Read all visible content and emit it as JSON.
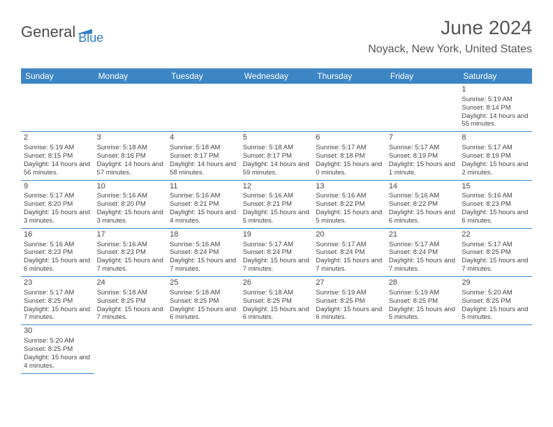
{
  "logo": {
    "text1": "General",
    "text2": "Blue"
  },
  "title": "June 2024",
  "location": "Noyack, New York, United States",
  "colors": {
    "header_bg": "#3d86c6",
    "header_text": "#ffffff",
    "border": "#3d86c6",
    "body_text": "#444444",
    "title_text": "#555555",
    "logo_gray": "#4a4a4a",
    "logo_blue": "#2f7cc4"
  },
  "weekdays": [
    "Sunday",
    "Monday",
    "Tuesday",
    "Wednesday",
    "Thursday",
    "Friday",
    "Saturday"
  ],
  "grid": [
    [
      null,
      null,
      null,
      null,
      null,
      null,
      {
        "n": "1",
        "sr": "Sunrise: 5:19 AM",
        "ss": "Sunset: 8:14 PM",
        "dl": "Daylight: 14 hours and 55 minutes."
      }
    ],
    [
      {
        "n": "2",
        "sr": "Sunrise: 5:19 AM",
        "ss": "Sunset: 8:15 PM",
        "dl": "Daylight: 14 hours and 56 minutes."
      },
      {
        "n": "3",
        "sr": "Sunrise: 5:18 AM",
        "ss": "Sunset: 8:16 PM",
        "dl": "Daylight: 14 hours and 57 minutes."
      },
      {
        "n": "4",
        "sr": "Sunrise: 5:18 AM",
        "ss": "Sunset: 8:17 PM",
        "dl": "Daylight: 14 hours and 58 minutes."
      },
      {
        "n": "5",
        "sr": "Sunrise: 5:18 AM",
        "ss": "Sunset: 8:17 PM",
        "dl": "Daylight: 14 hours and 59 minutes."
      },
      {
        "n": "6",
        "sr": "Sunrise: 5:17 AM",
        "ss": "Sunset: 8:18 PM",
        "dl": "Daylight: 15 hours and 0 minutes."
      },
      {
        "n": "7",
        "sr": "Sunrise: 5:17 AM",
        "ss": "Sunset: 8:19 PM",
        "dl": "Daylight: 15 hours and 1 minute."
      },
      {
        "n": "8",
        "sr": "Sunrise: 5:17 AM",
        "ss": "Sunset: 8:19 PM",
        "dl": "Daylight: 15 hours and 2 minutes."
      }
    ],
    [
      {
        "n": "9",
        "sr": "Sunrise: 5:17 AM",
        "ss": "Sunset: 8:20 PM",
        "dl": "Daylight: 15 hours and 3 minutes."
      },
      {
        "n": "10",
        "sr": "Sunrise: 5:16 AM",
        "ss": "Sunset: 8:20 PM",
        "dl": "Daylight: 15 hours and 3 minutes."
      },
      {
        "n": "11",
        "sr": "Sunrise: 5:16 AM",
        "ss": "Sunset: 8:21 PM",
        "dl": "Daylight: 15 hours and 4 minutes."
      },
      {
        "n": "12",
        "sr": "Sunrise: 5:16 AM",
        "ss": "Sunset: 8:21 PM",
        "dl": "Daylight: 15 hours and 5 minutes."
      },
      {
        "n": "13",
        "sr": "Sunrise: 5:16 AM",
        "ss": "Sunset: 8:22 PM",
        "dl": "Daylight: 15 hours and 5 minutes."
      },
      {
        "n": "14",
        "sr": "Sunrise: 5:16 AM",
        "ss": "Sunset: 8:22 PM",
        "dl": "Daylight: 15 hours and 6 minutes."
      },
      {
        "n": "15",
        "sr": "Sunrise: 5:16 AM",
        "ss": "Sunset: 8:23 PM",
        "dl": "Daylight: 15 hours and 6 minutes."
      }
    ],
    [
      {
        "n": "16",
        "sr": "Sunrise: 5:16 AM",
        "ss": "Sunset: 8:23 PM",
        "dl": "Daylight: 15 hours and 6 minutes."
      },
      {
        "n": "17",
        "sr": "Sunrise: 5:16 AM",
        "ss": "Sunset: 8:23 PM",
        "dl": "Daylight: 15 hours and 7 minutes."
      },
      {
        "n": "18",
        "sr": "Sunrise: 5:16 AM",
        "ss": "Sunset: 8:24 PM",
        "dl": "Daylight: 15 hours and 7 minutes."
      },
      {
        "n": "19",
        "sr": "Sunrise: 5:17 AM",
        "ss": "Sunset: 8:24 PM",
        "dl": "Daylight: 15 hours and 7 minutes."
      },
      {
        "n": "20",
        "sr": "Sunrise: 5:17 AM",
        "ss": "Sunset: 8:24 PM",
        "dl": "Daylight: 15 hours and 7 minutes."
      },
      {
        "n": "21",
        "sr": "Sunrise: 5:17 AM",
        "ss": "Sunset: 8:24 PM",
        "dl": "Daylight: 15 hours and 7 minutes."
      },
      {
        "n": "22",
        "sr": "Sunrise: 5:17 AM",
        "ss": "Sunset: 8:25 PM",
        "dl": "Daylight: 15 hours and 7 minutes."
      }
    ],
    [
      {
        "n": "23",
        "sr": "Sunrise: 5:17 AM",
        "ss": "Sunset: 8:25 PM",
        "dl": "Daylight: 15 hours and 7 minutes."
      },
      {
        "n": "24",
        "sr": "Sunrise: 5:18 AM",
        "ss": "Sunset: 8:25 PM",
        "dl": "Daylight: 15 hours and 7 minutes."
      },
      {
        "n": "25",
        "sr": "Sunrise: 5:18 AM",
        "ss": "Sunset: 8:25 PM",
        "dl": "Daylight: 15 hours and 6 minutes."
      },
      {
        "n": "26",
        "sr": "Sunrise: 5:18 AM",
        "ss": "Sunset: 8:25 PM",
        "dl": "Daylight: 15 hours and 6 minutes."
      },
      {
        "n": "27",
        "sr": "Sunrise: 5:19 AM",
        "ss": "Sunset: 8:25 PM",
        "dl": "Daylight: 15 hours and 6 minutes."
      },
      {
        "n": "28",
        "sr": "Sunrise: 5:19 AM",
        "ss": "Sunset: 8:25 PM",
        "dl": "Daylight: 15 hours and 5 minutes."
      },
      {
        "n": "29",
        "sr": "Sunrise: 5:20 AM",
        "ss": "Sunset: 8:25 PM",
        "dl": "Daylight: 15 hours and 5 minutes."
      }
    ],
    [
      {
        "n": "30",
        "sr": "Sunrise: 5:20 AM",
        "ss": "Sunset: 8:25 PM",
        "dl": "Daylight: 15 hours and 4 minutes."
      },
      null,
      null,
      null,
      null,
      null,
      null
    ]
  ]
}
